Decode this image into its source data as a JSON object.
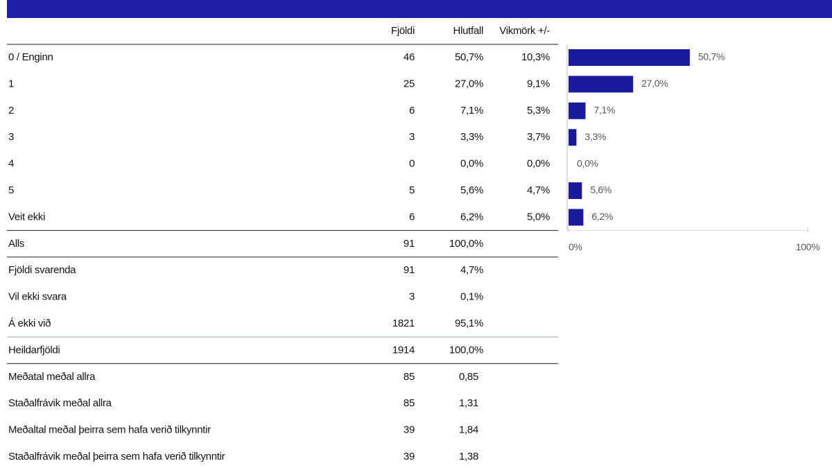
{
  "table": {
    "header": [
      "Fjöldi",
      "Hlutfall",
      "Vikmörk +/-"
    ],
    "rows": [
      [
        "0 / Enginn",
        "46",
        "50,7%",
        "10,3%"
      ],
      [
        "1",
        "25",
        "27,0%",
        "9,1%"
      ],
      [
        "2",
        "6",
        "7,1%",
        "5,3%"
      ],
      [
        "3",
        "3",
        "3,3%",
        "3,7%"
      ],
      [
        "4",
        "0",
        "0,0%",
        "0,0%"
      ],
      [
        "5",
        "5",
        "5,6%",
        "4,7%"
      ],
      [
        "Veit ekki",
        "6",
        "6,2%",
        "5,0%"
      ],
      [
        "Alls",
        "91",
        "100,0%"
      ],
      [
        "Fjöldi svarenda",
        "91",
        "4,7%"
      ],
      [
        "Vil ekki svara",
        "3",
        "0,1%"
      ],
      [
        "Á ekki við",
        "1821",
        "95,1%"
      ],
      [
        "Heildarfjöldi",
        "1914",
        "100,0%"
      ],
      [
        "Meðatal meðal allra",
        "85",
        "0,85"
      ],
      [
        "Staðalfrávik meðal allra",
        "85",
        "1,31"
      ],
      [
        "Meðaltal meðal þeirra sem hafa verið tilkynntir",
        "39",
        "1,84"
      ],
      [
        "Staðalfrávik meðal þeirra sem hafa verið tilkynntir",
        "39",
        "1,38"
      ]
    ]
  },
  "chart_data": {
    "type": "bar",
    "orientation": "horizontal",
    "color": "#1a1a9c",
    "values": [
      50.7,
      27.0,
      7.1,
      3.3,
      0.0,
      5.6,
      6.2
    ],
    "value_labels": [
      "50,7%",
      "27,0%",
      "7,1%",
      "3,3%",
      "0,0%",
      "5,6%",
      "6,2%"
    ],
    "xlim": [
      0,
      100
    ],
    "xticks": [
      {
        "value": 0,
        "label": "0%"
      },
      {
        "value": 100,
        "label": "100%"
      }
    ]
  }
}
